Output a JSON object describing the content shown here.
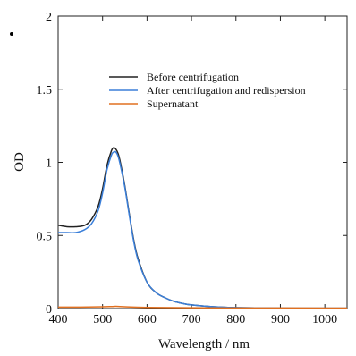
{
  "chart_data": {
    "type": "line",
    "xlabel": "Wavelength / nm",
    "ylabel": "OD",
    "xlim": [
      400,
      1050
    ],
    "ylim": [
      0,
      2
    ],
    "x_ticks": [
      400,
      500,
      600,
      700,
      800,
      900,
      1000
    ],
    "y_ticks": [
      0,
      0.5,
      1,
      1.5,
      2
    ],
    "y_tick_labels": [
      "0",
      "0.5",
      "1",
      "1.5",
      "2"
    ],
    "legend_position": "top-right",
    "grid": false,
    "series": [
      {
        "name": "Before centrifugation",
        "color": "#222222",
        "x": [
          400,
          420,
          440,
          460,
          475,
          490,
          500,
          510,
          520,
          525,
          530,
          535,
          540,
          550,
          560,
          570,
          580,
          600,
          620,
          640,
          660,
          680,
          700,
          750,
          800,
          900,
          1000,
          1050
        ],
        "y": [
          0.57,
          0.56,
          0.56,
          0.57,
          0.61,
          0.7,
          0.82,
          0.98,
          1.08,
          1.1,
          1.09,
          1.06,
          1.0,
          0.84,
          0.65,
          0.47,
          0.34,
          0.18,
          0.11,
          0.075,
          0.05,
          0.035,
          0.025,
          0.012,
          0.006,
          0.003,
          0.002,
          0.002
        ]
      },
      {
        "name": "After centrifugation and redispersion",
        "color": "#3b7fd9",
        "x": [
          400,
          420,
          440,
          460,
          475,
          490,
          500,
          510,
          520,
          525,
          530,
          535,
          540,
          550,
          560,
          570,
          580,
          600,
          620,
          640,
          660,
          680,
          700,
          750,
          800,
          900,
          1000,
          1050
        ],
        "y": [
          0.52,
          0.52,
          0.52,
          0.54,
          0.58,
          0.67,
          0.79,
          0.95,
          1.05,
          1.07,
          1.07,
          1.04,
          0.98,
          0.83,
          0.64,
          0.46,
          0.33,
          0.18,
          0.11,
          0.075,
          0.05,
          0.035,
          0.025,
          0.012,
          0.006,
          0.003,
          0.002,
          0.002
        ]
      },
      {
        "name": "Supernatant",
        "color": "#e07020",
        "x": [
          400,
          450,
          500,
          530,
          550,
          600,
          700,
          800,
          900,
          1000,
          1050
        ],
        "y": [
          0.01,
          0.01,
          0.012,
          0.015,
          0.012,
          0.008,
          0.005,
          0.004,
          0.004,
          0.003,
          0.003
        ]
      }
    ]
  }
}
